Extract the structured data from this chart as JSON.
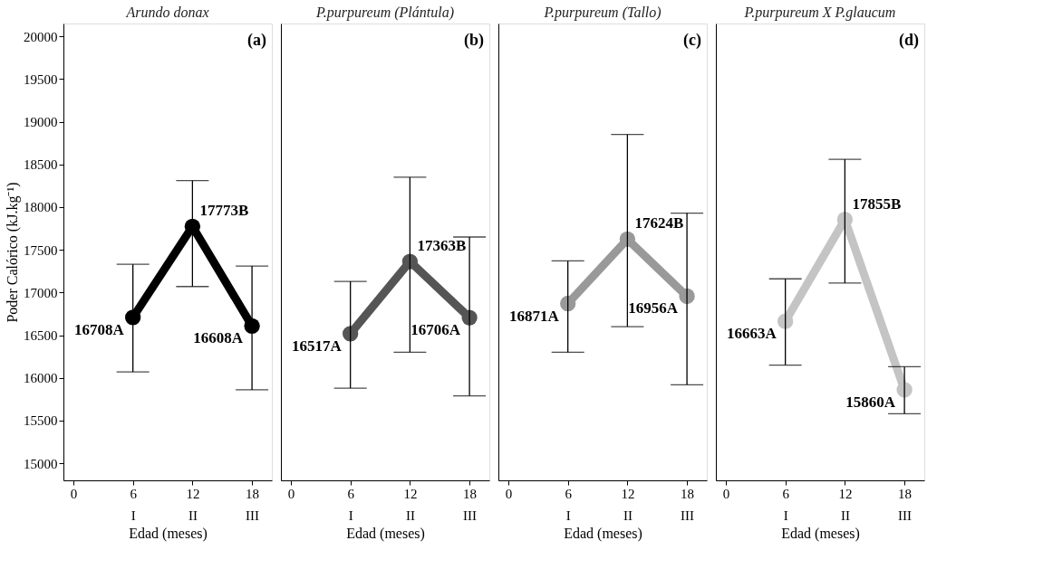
{
  "chart_data": [
    {
      "type": "line",
      "title": "Arundo donax",
      "xlabel": "Edad (meses)",
      "ylabel": "Poder Calórico (kJ.kg⁻¹)",
      "annotations": [
        "(a)"
      ],
      "x": [
        6,
        12,
        18
      ],
      "xlim": [
        -1,
        20
      ],
      "xticks": [
        0,
        {
          "value": 6,
          "label": "6\nI"
        },
        {
          "value": 12,
          "label": "12\nII"
        },
        {
          "value": 18,
          "label": "18\nIII"
        }
      ],
      "ylim": [
        14800,
        20150
      ],
      "yticks": [
        15000,
        15500,
        16000,
        16500,
        17000,
        17500,
        18000,
        18500,
        19000,
        19500,
        20000
      ],
      "grid": false,
      "marker": "circle",
      "line_style": "solid",
      "series": [
        {
          "color": "#000000",
          "values": [
            16708,
            17773,
            16608
          ],
          "errors": [
            [
              16070,
              17330
            ],
            [
              17070,
              18310
            ],
            [
              15860,
              17310
            ]
          ],
          "value_labels": [
            "16708A",
            "17773B",
            "16608A"
          ]
        }
      ]
    },
    {
      "type": "line",
      "title": "P.purpureum (Plántula)",
      "xlabel": "Edad (meses)",
      "annotations": [
        "(b)"
      ],
      "x": [
        6,
        12,
        18
      ],
      "xlim": [
        -1,
        20
      ],
      "xticks": [
        0,
        {
          "value": 6,
          "label": "6\nI"
        },
        {
          "value": 12,
          "label": "12\nII"
        },
        {
          "value": 18,
          "label": "18\nIII"
        }
      ],
      "ylim": [
        14800,
        20150
      ],
      "tick_labels": "x",
      "grid": false,
      "marker": "circle",
      "line_style": "solid",
      "series": [
        {
          "color": "#555555",
          "values": [
            16517,
            17363,
            16706
          ],
          "errors": [
            [
              15880,
              17130
            ],
            [
              16300,
              18350
            ],
            [
              15790,
              17650
            ]
          ],
          "value_labels": [
            "16517A",
            "17363B",
            "16706A"
          ]
        }
      ]
    },
    {
      "type": "line",
      "title": "P.purpureum (Tallo)",
      "xlabel": "Edad (meses)",
      "annotations": [
        "(c)"
      ],
      "x": [
        6,
        12,
        18
      ],
      "xlim": [
        -1,
        20
      ],
      "xticks": [
        0,
        {
          "value": 6,
          "label": "6\nI"
        },
        {
          "value": 12,
          "label": "12\nII"
        },
        {
          "value": 18,
          "label": "18\nIII"
        }
      ],
      "ylim": [
        14800,
        20150
      ],
      "tick_labels": "x",
      "grid": false,
      "marker": "circle",
      "line_style": "solid",
      "series": [
        {
          "color": "#999999",
          "values": [
            16871,
            17624,
            16956
          ],
          "errors": [
            [
              16300,
              17370
            ],
            [
              16600,
              18850
            ],
            [
              15920,
              17930
            ]
          ],
          "value_labels": [
            "16871A",
            "17624B",
            "16956A"
          ]
        }
      ]
    },
    {
      "type": "line",
      "title": "P.purpureum X P.glaucum",
      "xlabel": "Edad (meses)",
      "annotations": [
        "(d)"
      ],
      "x": [
        6,
        12,
        18
      ],
      "xlim": [
        -1,
        20
      ],
      "xticks": [
        0,
        {
          "value": 6,
          "label": "6\nI"
        },
        {
          "value": 12,
          "label": "12\nII"
        },
        {
          "value": 18,
          "label": "18\nIII"
        }
      ],
      "ylim": [
        14800,
        20150
      ],
      "tick_labels": "x",
      "grid": false,
      "marker": "circle",
      "line_style": "solid",
      "series": [
        {
          "color": "#c4c4c4",
          "values": [
            16663,
            17855,
            15860
          ],
          "errors": [
            [
              16150,
              17160
            ],
            [
              17110,
              18560
            ],
            [
              15580,
              16130
            ]
          ],
          "value_labels": [
            "16663A",
            "17855B",
            "15860A"
          ]
        }
      ]
    }
  ]
}
